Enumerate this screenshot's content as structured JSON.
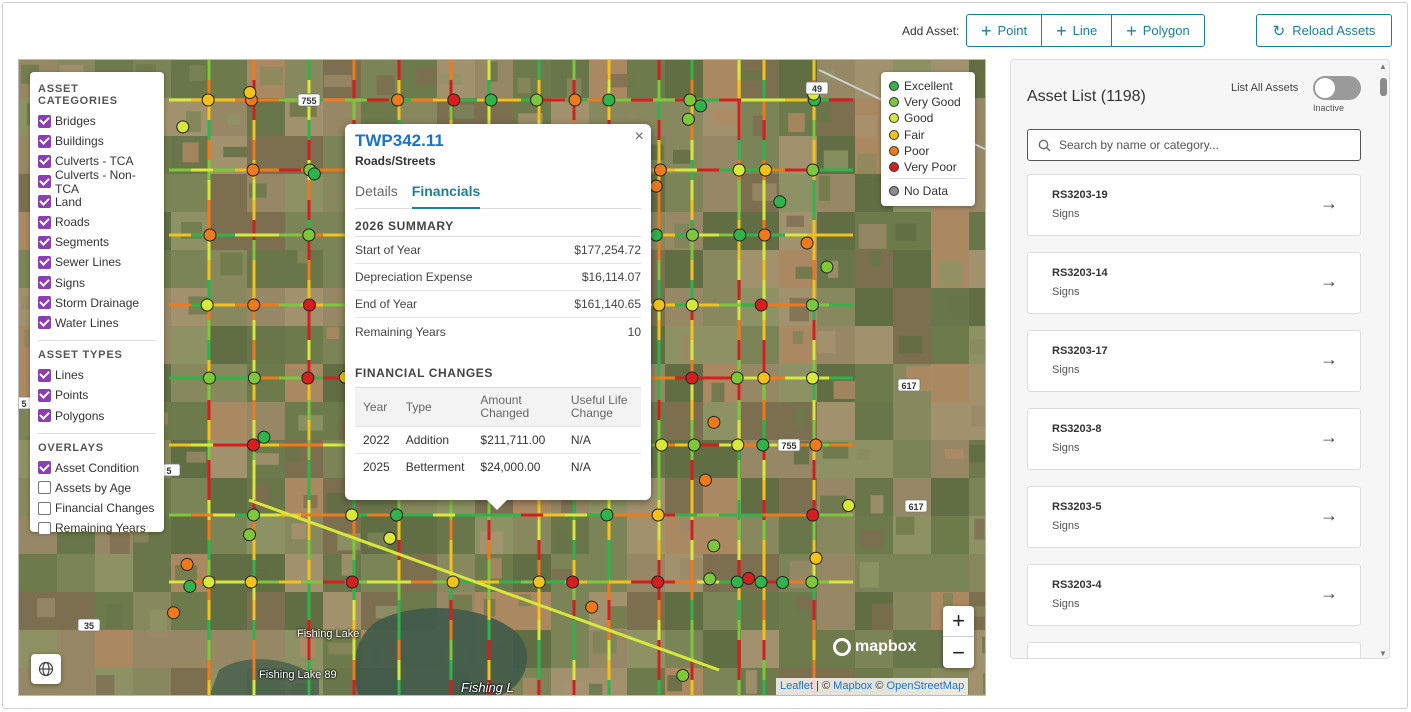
{
  "toolbar": {
    "add_label": "Add Asset:",
    "point": "Point",
    "line": "Line",
    "polygon": "Polygon",
    "reload": "Reload Assets"
  },
  "layers": {
    "categories_title": "ASSET CATEGORIES",
    "categories": [
      {
        "label": "Bridges",
        "checked": true
      },
      {
        "label": "Buildings",
        "checked": true
      },
      {
        "label": "Culverts - TCA",
        "checked": true
      },
      {
        "label": "Culverts - Non-TCA",
        "checked": true
      },
      {
        "label": "Land",
        "checked": true
      },
      {
        "label": "Roads",
        "checked": true
      },
      {
        "label": "Segments",
        "checked": true
      },
      {
        "label": "Sewer Lines",
        "checked": true
      },
      {
        "label": "Signs",
        "checked": true
      },
      {
        "label": "Storm Drainage",
        "checked": true
      },
      {
        "label": "Water Lines",
        "checked": true
      }
    ],
    "types_title": "ASSET TYPES",
    "types": [
      {
        "label": "Lines",
        "checked": true
      },
      {
        "label": "Points",
        "checked": true
      },
      {
        "label": "Polygons",
        "checked": true
      }
    ],
    "overlays_title": "OVERLAYS",
    "overlays": [
      {
        "label": "Asset Condition",
        "checked": true
      },
      {
        "label": "Assets by Age",
        "checked": false
      },
      {
        "label": "Financial Changes",
        "checked": false
      },
      {
        "label": "Remaining Years",
        "checked": false
      }
    ]
  },
  "legend": {
    "items": [
      {
        "label": "Excellent",
        "color": "#2fb34a"
      },
      {
        "label": "Very Good",
        "color": "#7cc73a"
      },
      {
        "label": "Good",
        "color": "#d7e83a"
      },
      {
        "label": "Fair",
        "color": "#f2c21b"
      },
      {
        "label": "Poor",
        "color": "#ee7a1c"
      },
      {
        "label": "Very Poor",
        "color": "#d51f1f"
      }
    ],
    "nodata": {
      "label": "No Data",
      "color": "#8c8c8c"
    }
  },
  "popup": {
    "title": "TWP342.11",
    "subtitle": "Roads/Streets",
    "tabs": [
      "Details",
      "Financials"
    ],
    "active_tab": "Financials",
    "summary_title": "2026 SUMMARY",
    "summary": [
      {
        "label": "Start of Year",
        "value": "$177,254.72"
      },
      {
        "label": "Depreciation Expense",
        "value": "$16,114.07"
      },
      {
        "label": "End of Year",
        "value": "$161,140.65"
      },
      {
        "label": "Remaining Years",
        "value": "10"
      }
    ],
    "changes_title": "FINANCIAL CHANGES",
    "columns": [
      "Year",
      "Type",
      "Amount Changed",
      "Useful Life Change"
    ],
    "rows": [
      [
        "2022",
        "Addition",
        "$211,711.00",
        "N/A"
      ],
      [
        "2025",
        "Betterment",
        "$24,000.00",
        "N/A"
      ]
    ]
  },
  "map": {
    "places": [
      {
        "label": "Fishing Lake"
      },
      {
        "label": "Fishing Lake 89"
      },
      {
        "label": "Fishing L"
      }
    ],
    "road_shields": [
      "755",
      "49",
      "617",
      "617",
      "35",
      "5",
      "5",
      "755"
    ],
    "mapbox": "mapbox",
    "attribution": {
      "leaflet": "Leaflet",
      "sep1": " | © ",
      "mapbox": "Mapbox",
      "sep2": " © ",
      "osm": "OpenStreetMap"
    }
  },
  "panel": {
    "title": "Asset List (1198)",
    "list_all_label": "List All Assets",
    "toggle_state": "Inactive",
    "search_placeholder": "Search by name or category...",
    "assets": [
      {
        "name": "RS3203-19",
        "category": "Signs"
      },
      {
        "name": "RS3203-14",
        "category": "Signs"
      },
      {
        "name": "RS3203-17",
        "category": "Signs"
      },
      {
        "name": "RS3203-8",
        "category": "Signs"
      },
      {
        "name": "RS3203-5",
        "category": "Signs"
      },
      {
        "name": "RS3203-4",
        "category": "Signs"
      }
    ]
  }
}
